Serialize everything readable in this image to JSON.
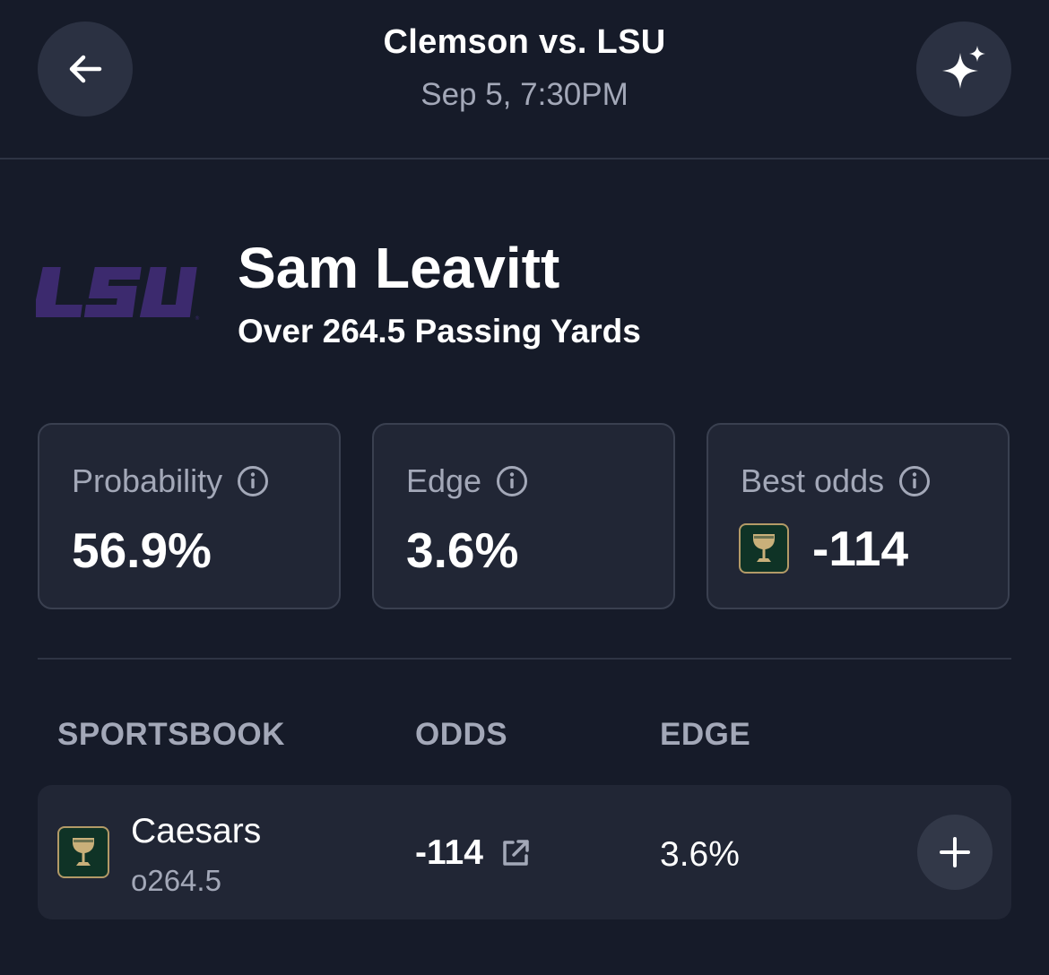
{
  "header": {
    "title": "Clemson vs. LSU",
    "datetime": "Sep 5, 7:30PM",
    "back_icon": "arrow-left-icon",
    "ai_icon": "sparkles-icon"
  },
  "player": {
    "team_logo_text": "LSU",
    "team_color": "#3c2a6e",
    "name": "Sam Leavitt",
    "market": "Over 264.5 Passing Yards"
  },
  "stats": {
    "probability": {
      "label": "Probability",
      "value": "56.9%"
    },
    "edge": {
      "label": "Edge",
      "value": "3.6%"
    },
    "best_odds": {
      "label": "Best odds",
      "value": "-114",
      "book_icon": "caesars-logo-icon"
    }
  },
  "table": {
    "columns": [
      "SPORTSBOOK",
      "ODDS",
      "EDGE"
    ],
    "rows": [
      {
        "book": "Caesars",
        "line": "o264.5",
        "odds": "-114",
        "edge": "3.6%"
      }
    ]
  },
  "colors": {
    "background": "#161b29",
    "card": "#212635",
    "muted_text": "#a3a8b8",
    "caesars_green": "#0f3326",
    "caesars_gold": "#b39a67"
  }
}
